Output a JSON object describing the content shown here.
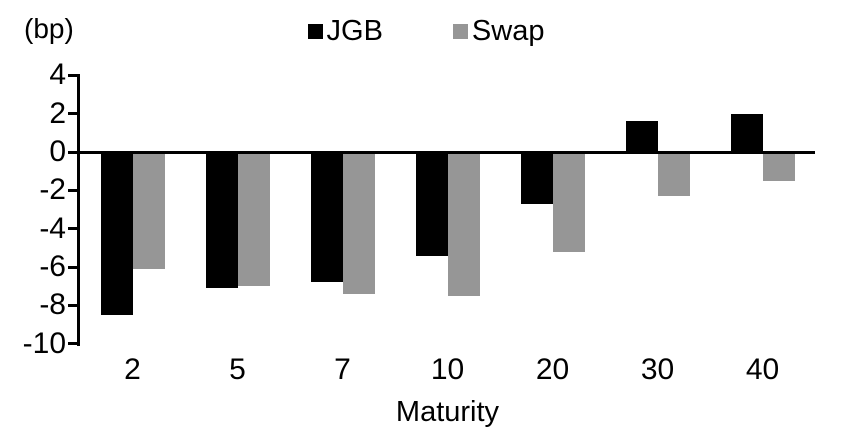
{
  "chart_data": {
    "type": "bar",
    "title": "",
    "unit_label": "(bp)",
    "xlabel": "Maturity",
    "ylabel": "",
    "categories": [
      "2",
      "5",
      "7",
      "10",
      "20",
      "30",
      "40"
    ],
    "series": [
      {
        "name": "JGB",
        "color": "#000000",
        "values": [
          -8.5,
          -7.1,
          -6.8,
          -5.4,
          -2.7,
          1.6,
          2.0
        ]
      },
      {
        "name": "Swap",
        "color": "#969696",
        "values": [
          -6.1,
          -7.0,
          -7.4,
          -7.5,
          -5.2,
          -2.3,
          -1.5
        ]
      }
    ],
    "ylim": [
      -10,
      4
    ],
    "yticks": [
      4,
      2,
      0,
      -2,
      -4,
      -6,
      -8,
      -10
    ],
    "grid": false,
    "legend_position": "top-center",
    "axis_color": "#000000",
    "background_color": "#ffffff"
  }
}
